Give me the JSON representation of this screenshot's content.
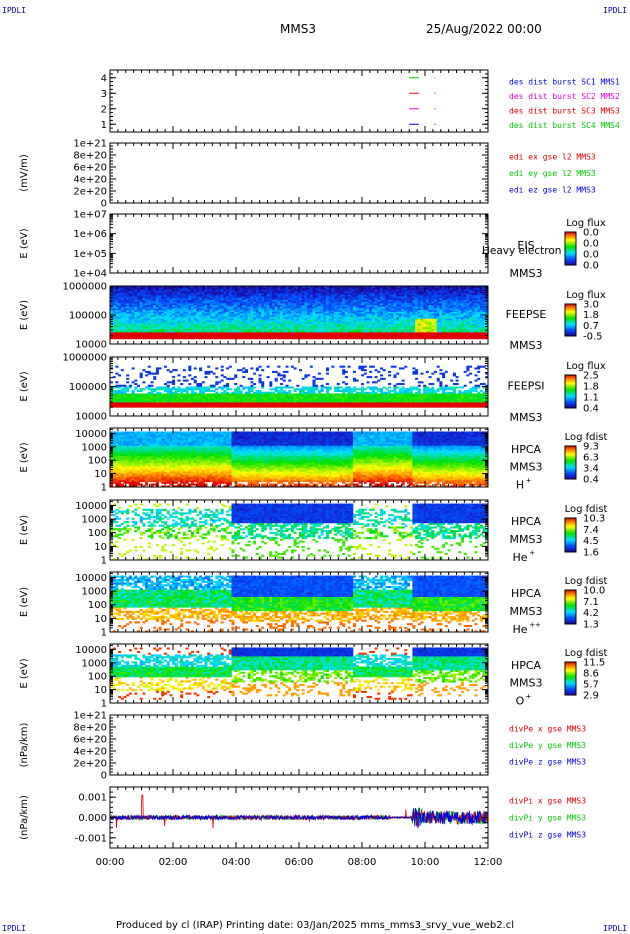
{
  "header": {
    "corner_label": "IPDLI",
    "spacecraft": "MMS3",
    "datetime": "25/Aug/2022 00:00"
  },
  "footer": {
    "text": "Produced by cl (IRAP)   Printing date: 03/Jan/2025   mms_mms3_srvy_vue_web2.cl"
  },
  "colors": {
    "black": "#000000",
    "blue": "#0000dd",
    "magenta": "#dd00dd",
    "red": "#dd0000",
    "green": "#00cc00"
  },
  "chart_data": {
    "type": "heatmap",
    "x_ticks": [
      "00:00",
      "02:00",
      "04:00",
      "06:00",
      "08:00",
      "10:00",
      "12:00"
    ],
    "xlim_hours": [
      0,
      12
    ],
    "panels": [
      {
        "id": "burst",
        "kind": "linear",
        "ylim": [
          0.5,
          4.5
        ],
        "y_ticks": [
          "4",
          "3",
          "2",
          "1"
        ],
        "y_tick_values": [
          4,
          3,
          2,
          1
        ],
        "ylabel": "",
        "legend": [
          {
            "text": "des dist burst SC1 MMS1",
            "color": "#0000dd"
          },
          {
            "text": "des dist burst SC2 MMS2",
            "color": "#dd00dd"
          },
          {
            "text": "des dist burst SC3 MMS3",
            "color": "#dd0000"
          },
          {
            "text": "des dist burst SC4 MMS4",
            "color": "#00cc00"
          }
        ],
        "markers": [
          {
            "level": 4,
            "color": "#00cc00"
          },
          {
            "level": 3,
            "color": "#dd0000"
          },
          {
            "level": 2,
            "color": "#dd00dd"
          },
          {
            "level": 1,
            "color": "#0000dd"
          }
        ]
      },
      {
        "id": "edi",
        "kind": "linear",
        "ylim": [
          0,
          1e+21
        ],
        "y_ticks": [
          "1e+21",
          "8e+20",
          "6e+20",
          "4e+20",
          "2e+20",
          "0"
        ],
        "y_tick_values": [
          1e+21,
          8e+20,
          6e+20,
          4e+20,
          2e+20,
          0
        ],
        "ylabel": "(mV/m)",
        "legend": [
          {
            "text": "edi ex gse l2 MMS3",
            "color": "#dd0000"
          },
          {
            "text": "edi ey gse l2 MMS3",
            "color": "#00cc00"
          },
          {
            "text": "edi ez gse l2 MMS3",
            "color": "#0000dd"
          }
        ]
      },
      {
        "id": "eis",
        "kind": "spectro-empty",
        "ylim_log": [
          4,
          7
        ],
        "y_ticks": [
          "1e+07",
          "1e+06",
          "1e+05",
          "1e+04"
        ],
        "y_tick_values": [
          7,
          6,
          5,
          4
        ],
        "ylabel": "E (eV)",
        "instrument": [
          "EIS",
          "MMS3"
        ],
        "overlay_text": "Heavy electron to",
        "cbar_title": "Log flux",
        "cbar_ticks": [
          "0.0",
          "0.0",
          "0.0",
          "0.0"
        ]
      },
      {
        "id": "feepse",
        "kind": "spectro",
        "profile": "feepse",
        "ylim_log": [
          4,
          6
        ],
        "y_ticks": [
          "1000000",
          "100000",
          "10000"
        ],
        "y_tick_values": [
          6,
          5,
          4
        ],
        "ylabel": "E (eV)",
        "instrument": [
          "FEEPSE",
          "MMS3"
        ],
        "cbar_title": "Log flux",
        "cbar_ticks": [
          "3.0",
          "1.8",
          "0.7",
          "-0.5"
        ]
      },
      {
        "id": "feepsi",
        "kind": "spectro",
        "profile": "feepsi",
        "ylim_log": [
          4,
          6
        ],
        "y_ticks": [
          "1000000",
          "100000",
          "10000"
        ],
        "y_tick_values": [
          6,
          5,
          4
        ],
        "ylabel": "E (eV)",
        "instrument": [
          "FEEPSI",
          "MMS3"
        ],
        "cbar_title": "Log flux",
        "cbar_ticks": [
          "2.5",
          "1.8",
          "1.1",
          "0.4"
        ]
      },
      {
        "id": "hpca_h",
        "kind": "spectro",
        "profile": "h",
        "ylim_log": [
          0,
          4.4
        ],
        "y_ticks": [
          "10000",
          "1000",
          "100",
          "10",
          "1"
        ],
        "y_tick_values": [
          4,
          3,
          2,
          1,
          0
        ],
        "ylabel": "E (eV)",
        "instrument": [
          "HPCA",
          "MMS3"
        ],
        "species": "H",
        "species_sup": "+",
        "cbar_title": "Log fdist",
        "cbar_ticks": [
          "9.3",
          "6.3",
          "3.4",
          "0.4"
        ]
      },
      {
        "id": "hpca_he",
        "kind": "spectro",
        "profile": "he",
        "ylim_log": [
          0,
          4.4
        ],
        "y_ticks": [
          "10000",
          "1000",
          "100",
          "10",
          "1"
        ],
        "y_tick_values": [
          4,
          3,
          2,
          1,
          0
        ],
        "ylabel": "E (eV)",
        "instrument": [
          "HPCA",
          "MMS3"
        ],
        "species": "He",
        "species_sup": "+",
        "cbar_title": "Log fdist",
        "cbar_ticks": [
          "10.3",
          "7.4",
          "4.5",
          "1.6"
        ]
      },
      {
        "id": "hpca_hepp",
        "kind": "spectro",
        "profile": "hepp",
        "ylim_log": [
          0,
          4.4
        ],
        "y_ticks": [
          "10000",
          "1000",
          "100",
          "10",
          "1"
        ],
        "y_tick_values": [
          4,
          3,
          2,
          1,
          0
        ],
        "ylabel": "E (eV)",
        "instrument": [
          "HPCA",
          "MMS3"
        ],
        "species": "He",
        "species_sup": "++",
        "cbar_title": "Log fdist",
        "cbar_ticks": [
          "10.0",
          "7.1",
          "4.2",
          "1.3"
        ]
      },
      {
        "id": "hpca_o",
        "kind": "spectro",
        "profile": "o",
        "ylim_log": [
          0,
          4.4
        ],
        "y_ticks": [
          "10000",
          "1000",
          "100",
          "10",
          "1"
        ],
        "y_tick_values": [
          4,
          3,
          2,
          1,
          0
        ],
        "ylabel": "E (eV)",
        "instrument": [
          "HPCA",
          "MMS3"
        ],
        "species": "O",
        "species_sup": "+",
        "cbar_title": "Log fdist",
        "cbar_ticks": [
          "11.5",
          "8.6",
          "5.7",
          "2.9"
        ]
      },
      {
        "id": "divpe",
        "kind": "linear",
        "ylim": [
          0,
          1e+21
        ],
        "y_ticks": [
          "1e+21",
          "8e+20",
          "6e+20",
          "4e+20",
          "2e+20",
          "0"
        ],
        "y_tick_values": [
          1e+21,
          8e+20,
          6e+20,
          4e+20,
          2e+20,
          0
        ],
        "ylabel": "(nPa/km)",
        "legend": [
          {
            "text": "divPe x gse MMS3",
            "color": "#dd0000"
          },
          {
            "text": "divPe y gse MMS3",
            "color": "#00cc00"
          },
          {
            "text": "divPe z gse MMS3",
            "color": "#0000dd"
          }
        ]
      },
      {
        "id": "divpi",
        "kind": "timeseries",
        "ylim": [
          -0.0015,
          0.0015
        ],
        "y_ticks": [
          "0.001",
          "0.000",
          "-0.001"
        ],
        "y_tick_values": [
          0.001,
          0,
          -0.001
        ],
        "ylabel": "(nPa/km)",
        "legend": [
          {
            "text": "divPi x gse MMS3",
            "color": "#dd0000"
          },
          {
            "text": "divPi y gse MMS3",
            "color": "#00cc00"
          },
          {
            "text": "divPi z gse MMS3",
            "color": "#0000dd"
          }
        ]
      }
    ]
  }
}
